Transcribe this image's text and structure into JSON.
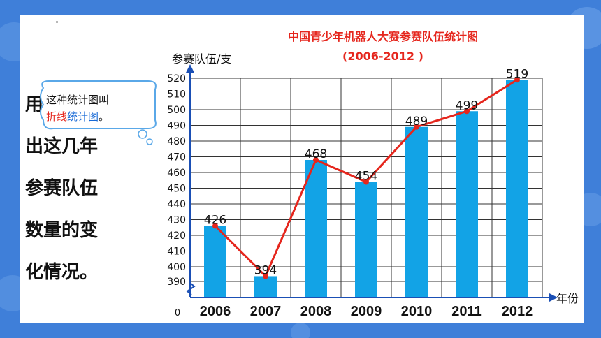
{
  "chart_data": {
    "type": "bar",
    "title": "中国青少年机器人大赛参赛队伍统计图",
    "subtitle": "(2006-2012 )",
    "ylabel": "参赛队伍/支",
    "xlabel": "年份",
    "origin_label": "0",
    "categories": [
      "2006",
      "2007",
      "2008",
      "2009",
      "2010",
      "2011",
      "2012"
    ],
    "values": [
      426,
      394,
      468,
      454,
      489,
      499,
      519
    ],
    "line_overlay": true,
    "ylim": [
      390,
      520
    ],
    "yticks": [
      390,
      400,
      410,
      420,
      430,
      440,
      450,
      460,
      470,
      480,
      490,
      500,
      510,
      520
    ],
    "grid": true,
    "colors": {
      "bar": "#12a3e6",
      "line": "#e5261d",
      "title": "#e5261d",
      "grid": "#333333"
    }
  },
  "side_text": [
    "用",
    "出这几年",
    "参赛队伍",
    "数量的变",
    "化情况。"
  ],
  "callout": {
    "line1": "这种统计图叫",
    "line2_red": "折线",
    "line2_blue": "统计图",
    "line2_end": "。"
  },
  "colors": {
    "background": "#3f7fd9",
    "panel": "#ffffff"
  }
}
